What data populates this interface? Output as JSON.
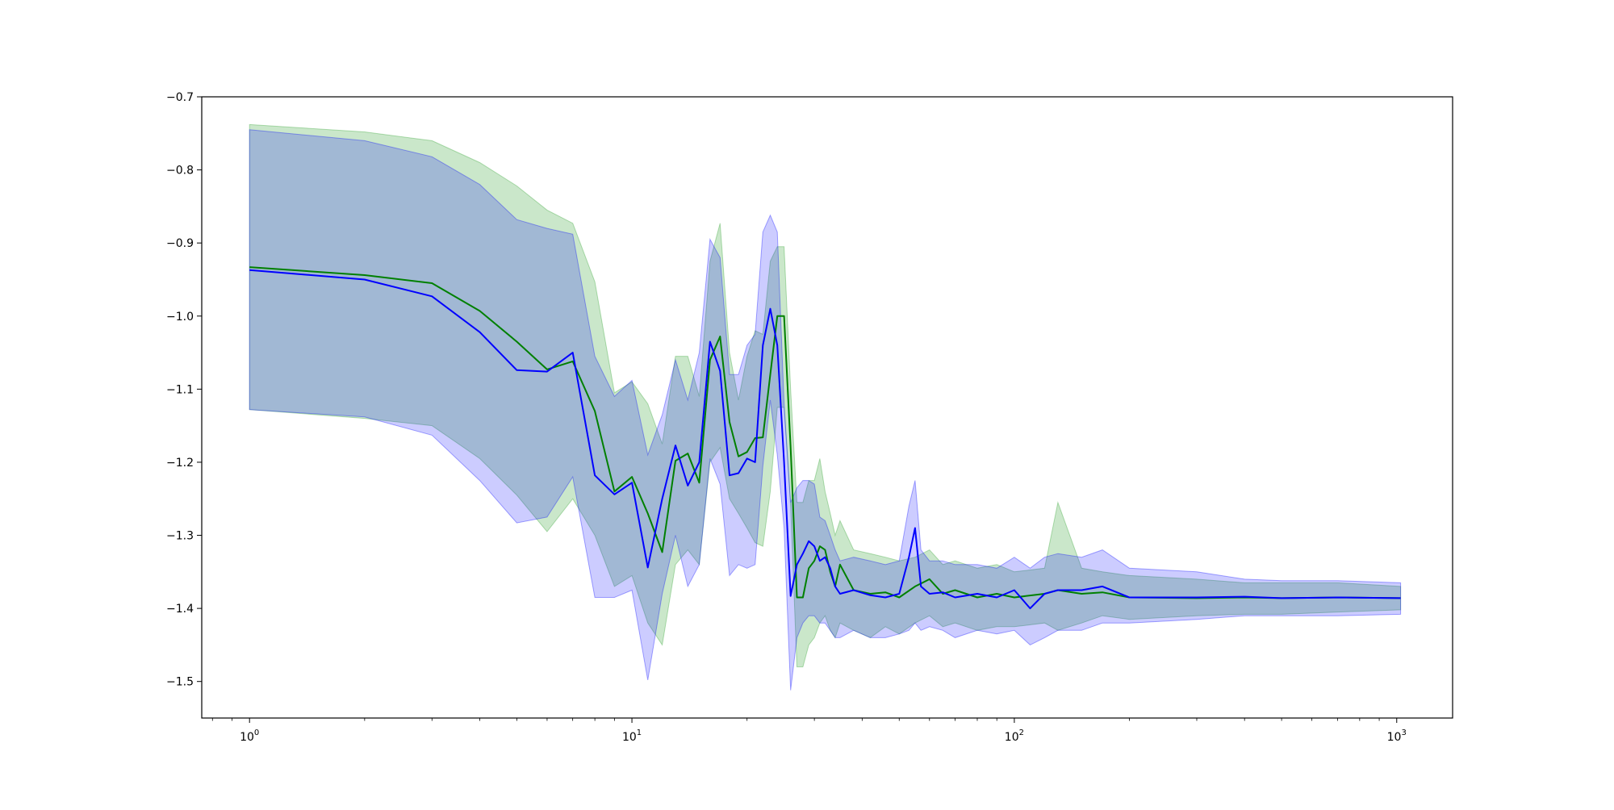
{
  "chart_data": {
    "type": "line",
    "title": "",
    "xlabel": "",
    "ylabel": "",
    "xscale": "log",
    "xlim": [
      0.75,
      1400
    ],
    "ylim": [
      -1.55,
      -0.7
    ],
    "grid": false,
    "legend": "none",
    "x_ticks": [
      {
        "value": 1,
        "base": "10",
        "exp": "0"
      },
      {
        "value": 10,
        "base": "10",
        "exp": "1"
      },
      {
        "value": 100,
        "base": "10",
        "exp": "2"
      },
      {
        "value": 1000,
        "base": "10",
        "exp": "3"
      }
    ],
    "y_ticks": [
      {
        "value": -0.7,
        "label": "−0.7"
      },
      {
        "value": -0.8,
        "label": "−0.8"
      },
      {
        "value": -0.9,
        "label": "−0.9"
      },
      {
        "value": -1.0,
        "label": "−1.0"
      },
      {
        "value": -1.1,
        "label": "−1.1"
      },
      {
        "value": -1.2,
        "label": "−1.2"
      },
      {
        "value": -1.3,
        "label": "−1.3"
      },
      {
        "value": -1.4,
        "label": "−1.4"
      },
      {
        "value": -1.5,
        "label": "−1.5"
      }
    ],
    "series": [
      {
        "color": "#008000",
        "band_color": "#2ca02c",
        "band_opacity": 0.25,
        "x": [
          1,
          2,
          3,
          4,
          5,
          6,
          7,
          8,
          9,
          10,
          11,
          12,
          13,
          14,
          15,
          16,
          17,
          18,
          19,
          20,
          21,
          22,
          23,
          24,
          25,
          26,
          27,
          28,
          29,
          30,
          31,
          32,
          33,
          34,
          35,
          38,
          42,
          46,
          50,
          55,
          60,
          65,
          70,
          80,
          90,
          100,
          120,
          130,
          150,
          170,
          200,
          300,
          400,
          500,
          700,
          1024
        ],
        "values": [
          -0.933,
          -0.944,
          -0.955,
          -0.993,
          -1.035,
          -1.073,
          -1.062,
          -1.13,
          -1.24,
          -1.22,
          -1.27,
          -1.323,
          -1.198,
          -1.188,
          -1.228,
          -1.06,
          -1.028,
          -1.145,
          -1.192,
          -1.186,
          -1.167,
          -1.166,
          -1.08,
          -1.0,
          -1.0,
          -1.18,
          -1.385,
          -1.385,
          -1.345,
          -1.335,
          -1.315,
          -1.32,
          -1.35,
          -1.37,
          -1.34,
          -1.375,
          -1.38,
          -1.378,
          -1.385,
          -1.37,
          -1.36,
          -1.38,
          -1.375,
          -1.385,
          -1.38,
          -1.385,
          -1.38,
          -1.375,
          -1.38,
          -1.378,
          -1.385,
          -1.386,
          -1.385,
          -1.386,
          -1.385,
          -1.386
        ],
        "upper": [
          -0.738,
          -0.748,
          -0.76,
          -0.79,
          -0.822,
          -0.855,
          -0.873,
          -0.953,
          -1.105,
          -1.09,
          -1.12,
          -1.175,
          -1.055,
          -1.055,
          -1.11,
          -0.925,
          -0.873,
          -1.05,
          -1.115,
          -1.055,
          -1.02,
          -1.025,
          -0.925,
          -0.905,
          -0.905,
          -1.1,
          -1.255,
          -1.255,
          -1.225,
          -1.225,
          -1.195,
          -1.24,
          -1.27,
          -1.3,
          -1.28,
          -1.32,
          -1.325,
          -1.33,
          -1.335,
          -1.33,
          -1.32,
          -1.34,
          -1.335,
          -1.345,
          -1.34,
          -1.35,
          -1.345,
          -1.255,
          -1.345,
          -1.35,
          -1.355,
          -1.36,
          -1.365,
          -1.365,
          -1.365,
          -1.37
        ],
        "lower": [
          -1.128,
          -1.14,
          -1.15,
          -1.195,
          -1.245,
          -1.295,
          -1.25,
          -1.3,
          -1.37,
          -1.355,
          -1.42,
          -1.45,
          -1.34,
          -1.32,
          -1.34,
          -1.2,
          -1.18,
          -1.25,
          -1.27,
          -1.29,
          -1.31,
          -1.315,
          -1.24,
          -1.125,
          -1.125,
          -1.26,
          -1.48,
          -1.48,
          -1.45,
          -1.44,
          -1.42,
          -1.41,
          -1.43,
          -1.44,
          -1.42,
          -1.43,
          -1.44,
          -1.425,
          -1.435,
          -1.42,
          -1.41,
          -1.425,
          -1.42,
          -1.43,
          -1.425,
          -1.425,
          -1.42,
          -1.43,
          -1.42,
          -1.41,
          -1.415,
          -1.41,
          -1.408,
          -1.408,
          -1.405,
          -1.402
        ]
      },
      {
        "color": "#0000ff",
        "band_color": "#0000ff",
        "band_opacity": 0.2,
        "x": [
          1,
          2,
          3,
          4,
          5,
          6,
          7,
          8,
          9,
          10,
          11,
          12,
          13,
          14,
          15,
          16,
          17,
          18,
          19,
          20,
          21,
          22,
          23,
          24,
          25,
          26,
          27,
          28,
          29,
          30,
          31,
          32,
          33,
          34,
          35,
          38,
          42,
          46,
          50,
          53,
          55,
          57,
          60,
          65,
          70,
          80,
          90,
          100,
          110,
          120,
          130,
          150,
          170,
          200,
          300,
          400,
          500,
          700,
          1024
        ],
        "values": [
          -0.937,
          -0.95,
          -0.973,
          -1.022,
          -1.074,
          -1.076,
          -1.05,
          -1.218,
          -1.244,
          -1.228,
          -1.344,
          -1.25,
          -1.177,
          -1.232,
          -1.2,
          -1.035,
          -1.075,
          -1.218,
          -1.215,
          -1.195,
          -1.2,
          -1.04,
          -0.99,
          -1.04,
          -1.2,
          -1.383,
          -1.34,
          -1.325,
          -1.308,
          -1.315,
          -1.335,
          -1.33,
          -1.345,
          -1.37,
          -1.38,
          -1.375,
          -1.382,
          -1.385,
          -1.38,
          -1.33,
          -1.29,
          -1.37,
          -1.38,
          -1.378,
          -1.385,
          -1.38,
          -1.385,
          -1.375,
          -1.4,
          -1.38,
          -1.375,
          -1.375,
          -1.37,
          -1.385,
          -1.385,
          -1.384,
          -1.386,
          -1.385,
          -1.386
        ],
        "upper": [
          -0.745,
          -0.76,
          -0.782,
          -0.82,
          -0.868,
          -0.88,
          -0.888,
          -1.055,
          -1.11,
          -1.088,
          -1.19,
          -1.135,
          -1.06,
          -1.115,
          -1.05,
          -0.895,
          -0.92,
          -1.08,
          -1.08,
          -1.04,
          -1.025,
          -0.885,
          -0.862,
          -0.885,
          -1.12,
          -1.255,
          -1.235,
          -1.225,
          -1.225,
          -1.23,
          -1.275,
          -1.28,
          -1.3,
          -1.32,
          -1.335,
          -1.33,
          -1.335,
          -1.34,
          -1.335,
          -1.26,
          -1.225,
          -1.32,
          -1.335,
          -1.335,
          -1.34,
          -1.34,
          -1.345,
          -1.33,
          -1.345,
          -1.33,
          -1.325,
          -1.33,
          -1.32,
          -1.345,
          -1.35,
          -1.36,
          -1.362,
          -1.362,
          -1.365
        ],
        "lower": [
          -1.128,
          -1.138,
          -1.163,
          -1.225,
          -1.283,
          -1.275,
          -1.22,
          -1.385,
          -1.385,
          -1.375,
          -1.498,
          -1.38,
          -1.3,
          -1.37,
          -1.34,
          -1.195,
          -1.23,
          -1.355,
          -1.34,
          -1.345,
          -1.34,
          -1.205,
          -1.115,
          -1.19,
          -1.29,
          -1.512,
          -1.44,
          -1.42,
          -1.41,
          -1.41,
          -1.42,
          -1.42,
          -1.43,
          -1.44,
          -1.44,
          -1.43,
          -1.44,
          -1.44,
          -1.435,
          -1.43,
          -1.42,
          -1.43,
          -1.425,
          -1.43,
          -1.44,
          -1.43,
          -1.435,
          -1.43,
          -1.45,
          -1.44,
          -1.43,
          -1.43,
          -1.42,
          -1.42,
          -1.415,
          -1.41,
          -1.41,
          -1.41,
          -1.408
        ]
      }
    ]
  }
}
